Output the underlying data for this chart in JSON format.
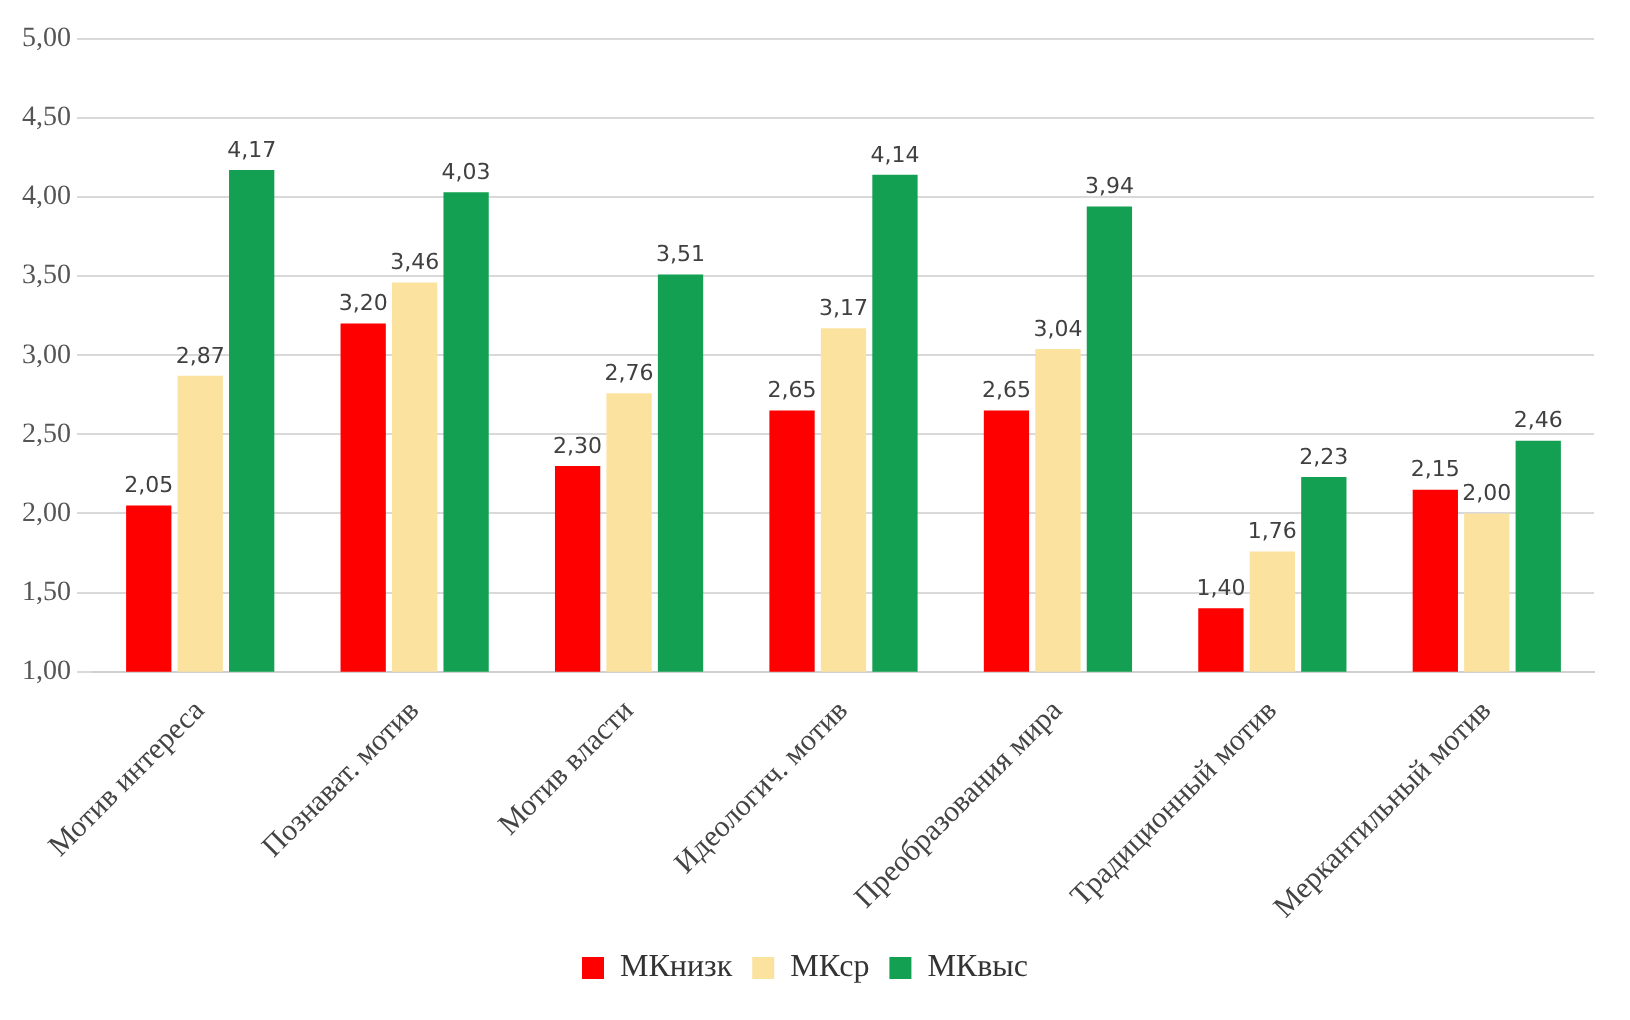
{
  "chart_data": {
    "type": "bar",
    "categories": [
      "Мотив интереса",
      "Познават. мотив",
      "Мотив власти",
      "Идеологич. мотив",
      "Преобразования мира",
      "Традиционный мотив",
      "Меркантильный мотив"
    ],
    "series": [
      {
        "name": "МКнизк",
        "color": "#ff0000",
        "values": [
          2.05,
          3.2,
          2.3,
          2.65,
          2.65,
          1.4,
          2.15
        ],
        "value_labels": [
          "2,05",
          "3,20",
          "2,30",
          "2,65",
          "2,65",
          "1,40",
          "2,15"
        ]
      },
      {
        "name": "МКср",
        "color": "#fbe29f",
        "values": [
          2.87,
          3.46,
          2.76,
          3.17,
          3.04,
          1.76,
          2.0
        ],
        "value_labels": [
          "2,87",
          "3,46",
          "2,76",
          "3,17",
          "3,04",
          "1,76",
          "2,00"
        ]
      },
      {
        "name": "МКвыс",
        "color": "#13a052",
        "values": [
          4.17,
          4.03,
          3.51,
          4.14,
          3.94,
          2.23,
          2.46
        ],
        "value_labels": [
          "4,17",
          "4,03",
          "3,51",
          "4,14",
          "3,94",
          "2,23",
          "2,46"
        ]
      }
    ],
    "ylim": [
      1,
      5
    ],
    "yticks": [
      {
        "value": 1,
        "label": "1,00"
      },
      {
        "value": 1.5,
        "label": "1,50"
      },
      {
        "value": 2,
        "label": "2,00"
      },
      {
        "value": 2.5,
        "label": "2,50"
      },
      {
        "value": 3,
        "label": "3,00"
      },
      {
        "value": 3.5,
        "label": "3,50"
      },
      {
        "value": 4,
        "label": "4,00"
      },
      {
        "value": 4.5,
        "label": "4,50"
      },
      {
        "value": 5,
        "label": "5,00"
      }
    ],
    "grid": "y",
    "legend": "bottom"
  }
}
